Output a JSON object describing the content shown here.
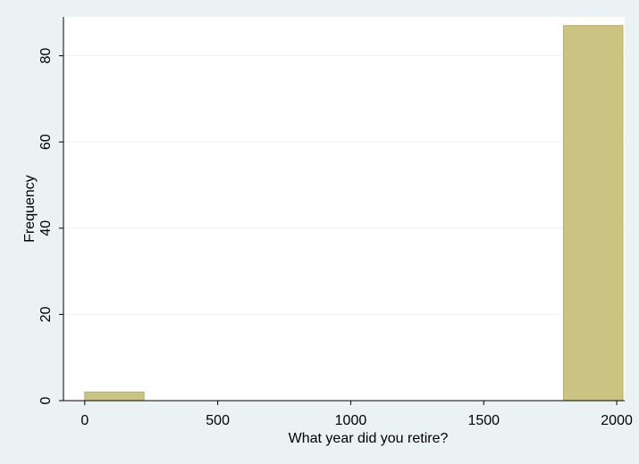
{
  "chart_data": {
    "type": "bar",
    "xlabel": "What year did you retire?",
    "ylabel": "Frequency",
    "xlim": [
      -80,
      2030
    ],
    "ylim": [
      0,
      89
    ],
    "x_ticks": [
      0,
      500,
      1000,
      1500,
      2000
    ],
    "y_ticks": [
      0,
      20,
      40,
      60,
      80
    ],
    "grid": true,
    "bins": [
      {
        "x_start": 0,
        "x_end": 223,
        "value": 2
      },
      {
        "x_start": 1800,
        "x_end": 2023,
        "value": 87
      }
    ],
    "colors": {
      "background": "#eaf2f3",
      "plot_area": "#ffffff",
      "bar_fill": "#cbc382",
      "bar_stroke": "#b8ad63",
      "grid": "#eaf2f3",
      "axis": "#000000"
    }
  }
}
